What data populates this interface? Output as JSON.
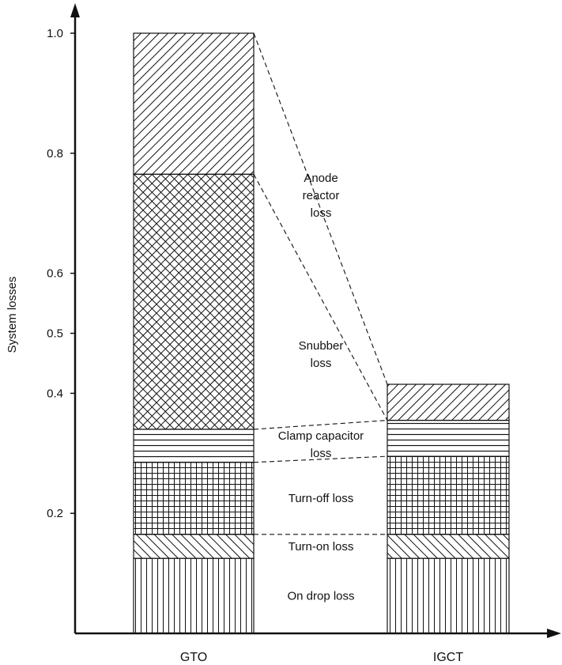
{
  "chart_data": {
    "type": "bar",
    "stacked": true,
    "ylabel": "System losses",
    "ylim": [
      0,
      1.0
    ],
    "yticks": [
      {
        "value": 0.2,
        "label": "0.2"
      },
      {
        "value": 0.4,
        "label": "0.4"
      },
      {
        "value": 0.5,
        "label": "0.5"
      },
      {
        "value": 0.6,
        "label": "0.6"
      },
      {
        "value": 0.8,
        "label": "0.8"
      },
      {
        "value": 1.0,
        "label": "1.0"
      }
    ],
    "categories": [
      "GTO",
      "IGCT"
    ],
    "series": [
      {
        "name": "On drop loss",
        "pattern": "vertical",
        "values": [
          0.125,
          0.125
        ]
      },
      {
        "name": "Turn-on loss",
        "pattern": "diag-back",
        "values": [
          0.04,
          0.04
        ]
      },
      {
        "name": "Turn-off loss",
        "pattern": "grid",
        "values": [
          0.12,
          0.13
        ]
      },
      {
        "name": "Clamp capacitor loss",
        "pattern": "horizontal",
        "values": [
          0.055,
          0.06
        ]
      },
      {
        "name": "Snubber loss",
        "pattern": "crosshatch",
        "values": [
          0.425,
          0
        ]
      },
      {
        "name": "Anode reactor loss",
        "pattern": "diag-fwd",
        "values": [
          0.235,
          0.06
        ]
      }
    ],
    "segment_labels": [
      {
        "series": "On drop loss",
        "lines": [
          "On drop loss"
        ]
      },
      {
        "series": "Turn-on loss",
        "lines": [
          "Turn-on loss"
        ]
      },
      {
        "series": "Turn-off loss",
        "lines": [
          "Turn-off loss"
        ]
      },
      {
        "series": "Clamp capacitor loss",
        "lines": [
          "Clamp capacitor",
          "loss"
        ]
      },
      {
        "series": "Snubber loss",
        "lines": [
          "Snubber",
          "loss"
        ]
      },
      {
        "series": "Anode reactor loss",
        "lines": [
          "Anode",
          "reactor",
          "loss"
        ]
      }
    ],
    "colors": {
      "stroke": "#111111",
      "background": "#ffffff"
    },
    "legend": "none",
    "grid": false
  }
}
